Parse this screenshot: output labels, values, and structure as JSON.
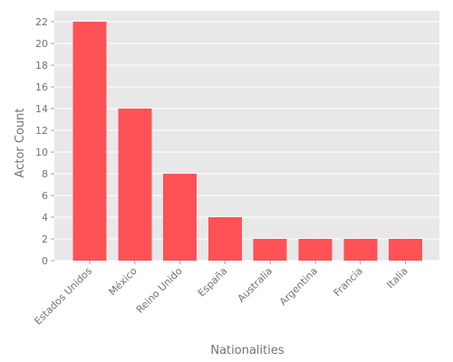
{
  "chart_data": {
    "type": "bar",
    "categories": [
      "Estados Unidos",
      "México",
      "Reino Unido",
      "España",
      "Australia",
      "Argentina",
      "Francia",
      "Italia"
    ],
    "values": [
      22,
      14,
      8,
      4,
      2,
      2,
      2,
      2
    ],
    "xlabel": "Nationalities",
    "ylabel": "Actor Count",
    "ylim": [
      0,
      23
    ],
    "yticks": [
      0,
      2,
      4,
      6,
      8,
      10,
      12,
      14,
      16,
      18,
      20,
      22
    ],
    "grid": true,
    "colors": {
      "bar": "#ff5257",
      "plot_background": "#e8e8e8",
      "text": "#737373"
    }
  }
}
